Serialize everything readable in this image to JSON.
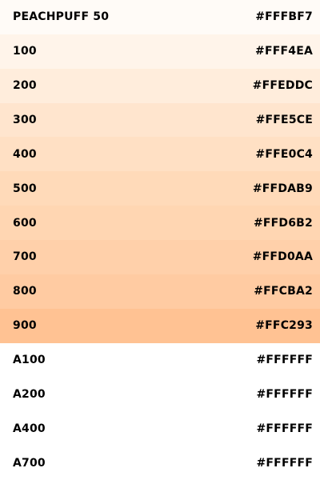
{
  "palette": {
    "swatches": [
      {
        "label": "PEACHPUFF 50",
        "hex": "#FFFBF7",
        "color": "#FFFBF7"
      },
      {
        "label": "100",
        "hex": "#FFF4EA",
        "color": "#FFF4EA"
      },
      {
        "label": "200",
        "hex": "#FFEDDC",
        "color": "#FFEDDC"
      },
      {
        "label": "300",
        "hex": "#FFE5CE",
        "color": "#FFE5CE"
      },
      {
        "label": "400",
        "hex": "#FFE0C4",
        "color": "#FFE0C4"
      },
      {
        "label": "500",
        "hex": "#FFDAB9",
        "color": "#FFDAB9"
      },
      {
        "label": "600",
        "hex": "#FFD6B2",
        "color": "#FFD6B2"
      },
      {
        "label": "700",
        "hex": "#FFD0AA",
        "color": "#FFD0AA"
      },
      {
        "label": "800",
        "hex": "#FFCBA2",
        "color": "#FFCBA2"
      },
      {
        "label": "900",
        "hex": "#FFC293",
        "color": "#FFC293"
      },
      {
        "label": "A100",
        "hex": "#FFFFFF",
        "color": "#FFFFFF"
      },
      {
        "label": "A200",
        "hex": "#FFFFFF",
        "color": "#FFFFFF"
      },
      {
        "label": "A400",
        "hex": "#FFFFFF",
        "color": "#FFFFFF"
      },
      {
        "label": "A700",
        "hex": "#FFFFFF",
        "color": "#FFFFFF"
      }
    ]
  }
}
